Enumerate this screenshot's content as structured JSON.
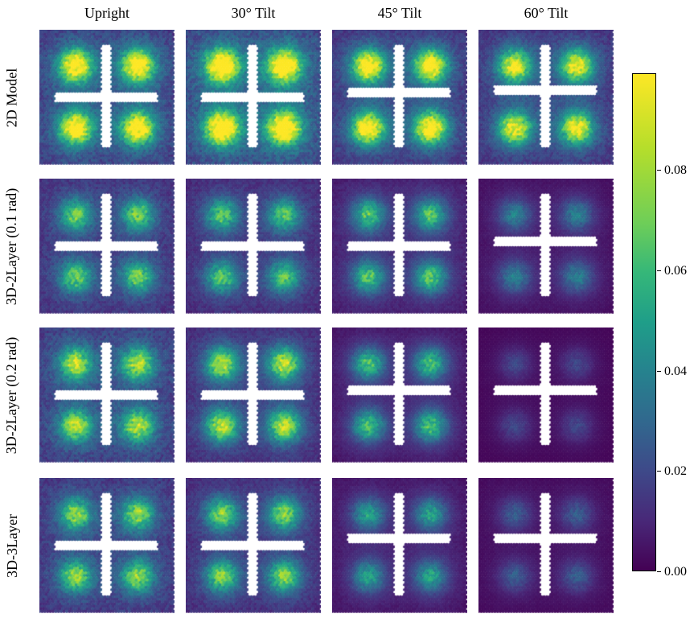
{
  "chart_data": {
    "type": "heatmap",
    "layout": "4x4 grid of hexbin heatmaps with shared colorbar",
    "columns": [
      "Upright",
      "30° Tilt",
      "45° Tilt",
      "60° Tilt"
    ],
    "rows": [
      "2D Model",
      "3D-2Layer (0.1 rad)",
      "3D-2Layer (0.2 rad)",
      "3D-3Layer"
    ],
    "colormap": "viridis",
    "colorbar": {
      "ticks": [
        0.0,
        0.02,
        0.04,
        0.06,
        0.08
      ],
      "tick_labels": [
        "0.00",
        "0.02",
        "0.04",
        "0.06",
        "0.08"
      ],
      "range": [
        0.0,
        0.1
      ]
    },
    "description": "Each panel shows density of four blob regions (quadrants) separated by a white cross-shaped gap; intensity decreases with tilt angle and for 3D models.",
    "panels": [
      {
        "row": 0,
        "col": 0,
        "peak": 0.085,
        "bg": 0.015,
        "cross_y": 0.5
      },
      {
        "row": 0,
        "col": 1,
        "peak": 0.095,
        "bg": 0.018,
        "cross_y": 0.5
      },
      {
        "row": 0,
        "col": 2,
        "peak": 0.085,
        "bg": 0.012,
        "cross_y": 0.47
      },
      {
        "row": 0,
        "col": 3,
        "peak": 0.075,
        "bg": 0.012,
        "cross_y": 0.45
      },
      {
        "row": 1,
        "col": 0,
        "peak": 0.05,
        "bg": 0.012,
        "cross_y": 0.5
      },
      {
        "row": 1,
        "col": 1,
        "peak": 0.048,
        "bg": 0.01,
        "cross_y": 0.5
      },
      {
        "row": 1,
        "col": 2,
        "peak": 0.05,
        "bg": 0.006,
        "cross_y": 0.5
      },
      {
        "row": 1,
        "col": 3,
        "peak": 0.03,
        "bg": 0.003,
        "cross_y": 0.47
      },
      {
        "row": 2,
        "col": 0,
        "peak": 0.06,
        "bg": 0.015,
        "cross_y": 0.5
      },
      {
        "row": 2,
        "col": 1,
        "peak": 0.065,
        "bg": 0.01,
        "cross_y": 0.5
      },
      {
        "row": 2,
        "col": 2,
        "peak": 0.05,
        "bg": 0.004,
        "cross_y": 0.47
      },
      {
        "row": 2,
        "col": 3,
        "peak": 0.015,
        "bg": 0.001,
        "cross_y": 0.47
      },
      {
        "row": 3,
        "col": 0,
        "peak": 0.055,
        "bg": 0.013,
        "cross_y": 0.5
      },
      {
        "row": 3,
        "col": 1,
        "peak": 0.055,
        "bg": 0.01,
        "cross_y": 0.5
      },
      {
        "row": 3,
        "col": 2,
        "peak": 0.04,
        "bg": 0.004,
        "cross_y": 0.45
      },
      {
        "row": 3,
        "col": 3,
        "peak": 0.02,
        "bg": 0.002,
        "cross_y": 0.45
      }
    ]
  },
  "header": {
    "col0": "Upright",
    "col1": "30° Tilt",
    "col2": "45° Tilt",
    "col3": "60° Tilt"
  },
  "sidebar": {
    "row0": "2D Model",
    "row1": "3D-2Layer (0.1 rad)",
    "row2": "3D-2Layer (0.2 rad)",
    "row3": "3D-3Layer"
  },
  "colorbar_labels": {
    "t0": "0.00",
    "t1": "0.02",
    "t2": "0.04",
    "t3": "0.06",
    "t4": "0.08"
  }
}
